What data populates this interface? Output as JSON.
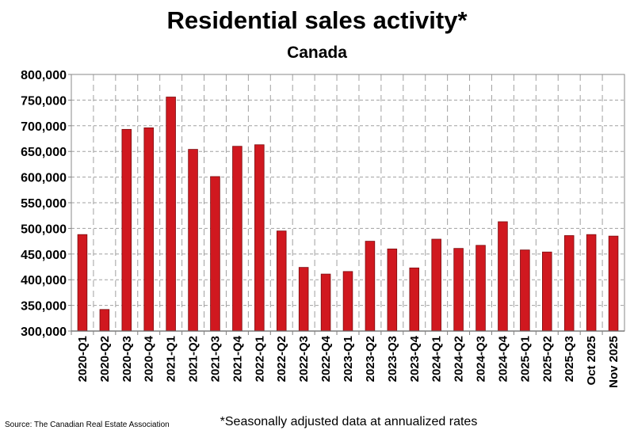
{
  "chart_data": {
    "type": "bar",
    "title": "Residential sales activity*",
    "subtitle": "Canada",
    "xlabel": "",
    "ylabel": "",
    "categories": [
      "2020-Q1",
      "2020-Q2",
      "2020-Q3",
      "2020-Q4",
      "2021-Q1",
      "2021-Q2",
      "2021-Q3",
      "2021-Q4",
      "2022-Q1",
      "2022-Q2",
      "2022-Q3",
      "2022-Q4",
      "2023-Q1",
      "2023-Q2",
      "2023-Q3",
      "2023-Q4",
      "2024-Q1",
      "2024-Q2",
      "2024-Q3",
      "2024-Q4",
      "2025-Q1",
      "2025-Q2",
      "2025-Q3",
      "Oct 2025",
      "Nov 2025"
    ],
    "values": [
      488000,
      342000,
      693000,
      696000,
      756000,
      654000,
      601000,
      660000,
      663000,
      495000,
      424000,
      411000,
      416000,
      475000,
      460000,
      423000,
      479000,
      461000,
      467000,
      513000,
      458000,
      454000,
      486000,
      488000,
      485000
    ],
    "ylim": [
      300000,
      800000
    ],
    "yticks": [
      "300,000",
      "350,000",
      "400,000",
      "450,000",
      "500,000",
      "550,000",
      "600,000",
      "650,000",
      "700,000",
      "750,000",
      "800,000"
    ],
    "grid": true,
    "bar_color": "#d0181f",
    "source": "Source: The Canadian Real Estate Association",
    "footnote": "*Seasonally adjusted data at annualized rates"
  }
}
